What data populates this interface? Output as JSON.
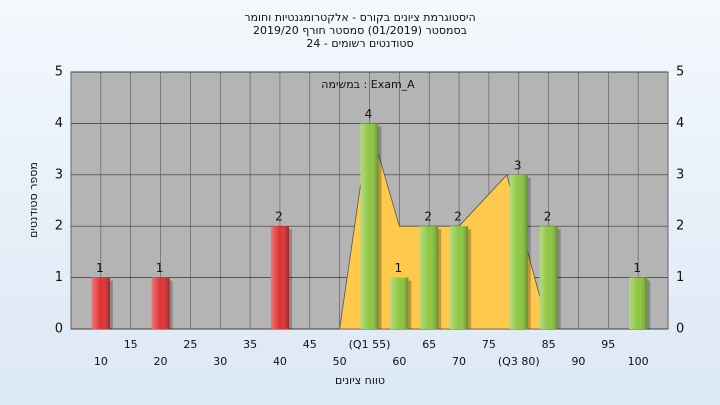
{
  "chart_data": {
    "type": "bar",
    "title": "היסטוגרמת ציונים בקורס - אלקטרומגנטיות וחומר",
    "subtitle": "בסמסטר  (01/2019)  סמסטר חורף 2019/20",
    "subtitle2": "סטודנטים רשומים - 24",
    "annotation": "במשימה : Exam_A",
    "x_label": "טווח ציונים",
    "y_label": "מספר סטודנטים",
    "x": [
      10,
      15,
      20,
      25,
      30,
      35,
      40,
      45,
      50,
      55,
      60,
      65,
      70,
      75,
      80,
      85,
      90,
      95,
      100
    ],
    "values": [
      1,
      0,
      1,
      0,
      0,
      0,
      2,
      0,
      0,
      4,
      1,
      2,
      2,
      0,
      3,
      2,
      0,
      0,
      1
    ],
    "colors": [
      "#e03030",
      "#e03030",
      "#e03030",
      "#e03030",
      "#e03030",
      "#e03030",
      "#e03030",
      "#e03030",
      "#e03030",
      "#8cc63f",
      "#8cc63f",
      "#8cc63f",
      "#8cc63f",
      "#8cc63f",
      "#8cc63f",
      "#8cc63f",
      "#8cc63f",
      "#8cc63f",
      "#8cc63f"
    ],
    "area": {
      "color": "#ffc94d",
      "x": [
        50,
        55,
        60,
        70,
        78,
        85
      ],
      "values": [
        0,
        4,
        2,
        2,
        3,
        0
      ]
    },
    "xlim": [
      5,
      105
    ],
    "xticks": [
      10,
      15,
      20,
      25,
      30,
      35,
      40,
      45,
      50,
      {
        "value": 55,
        "label": "(Q1 55)"
      },
      60,
      65,
      70,
      75,
      {
        "value": 80,
        "label": "(Q3 80)"
      },
      85,
      90,
      95,
      100
    ],
    "ylim": [
      0,
      5
    ],
    "yticks": [
      0,
      1,
      2,
      3,
      4,
      5
    ],
    "grid": true
  }
}
